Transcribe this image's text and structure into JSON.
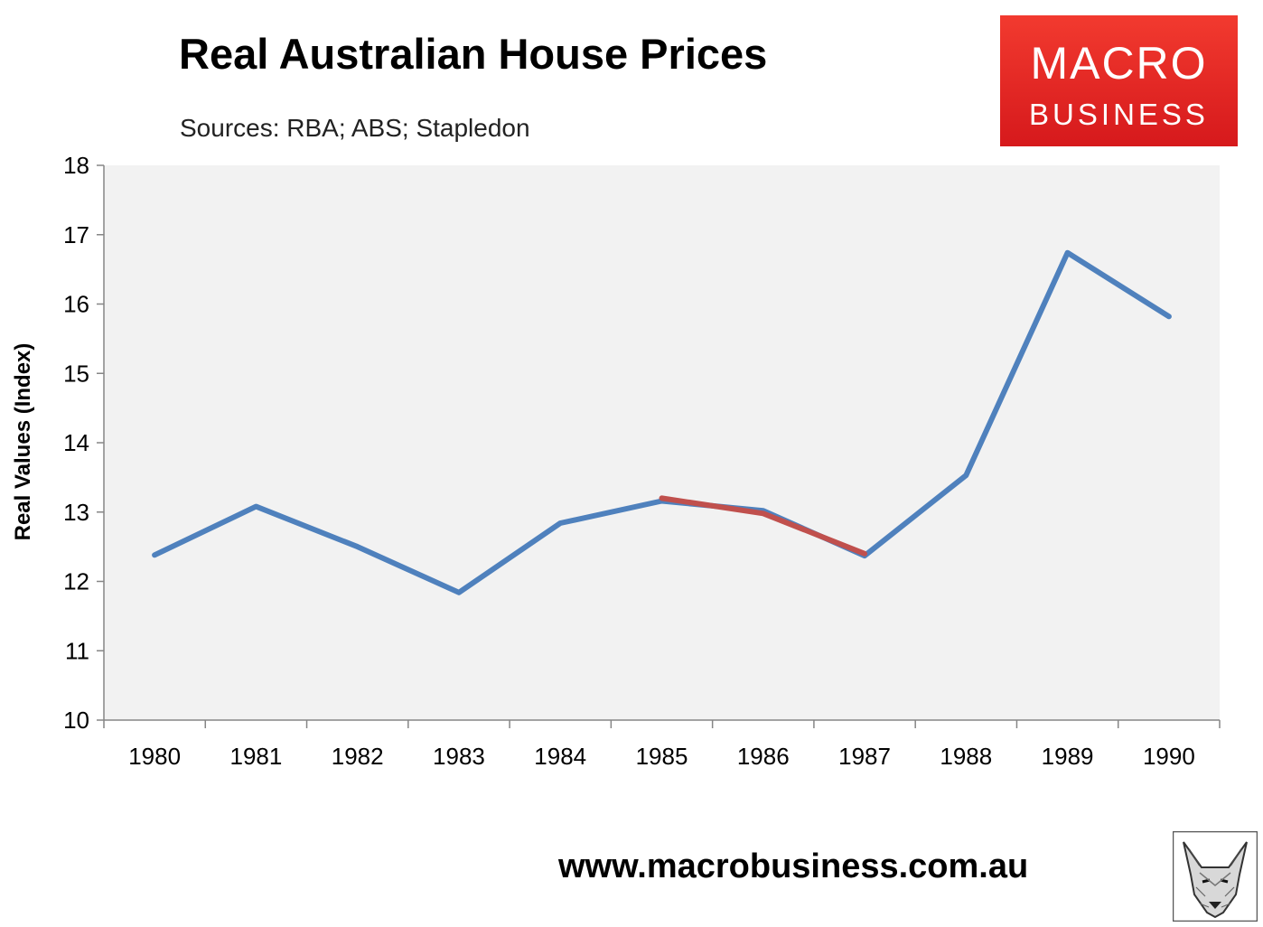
{
  "header": {
    "title": "Real Australian House Prices",
    "subtitle": "Sources: RBA; ABS; Stapledon"
  },
  "logo": {
    "line1": "MACRO",
    "line2": "BUSINESS",
    "color": "#e3262a"
  },
  "footer": {
    "website": "www.macrobusiness.com.au",
    "mascot": "fox-logo"
  },
  "colors": {
    "plot_background": "#f2f2f2",
    "series_main": "#4f81bd",
    "series_highlight": "#c0504d"
  },
  "chart_data": {
    "type": "line",
    "title": "Real Australian House Prices",
    "ylabel": "Real Values (Index)",
    "xlabel": "",
    "ylim": [
      10,
      18
    ],
    "yticks": [
      10,
      11,
      12,
      13,
      14,
      15,
      16,
      17,
      18
    ],
    "categories": [
      "1980",
      "1981",
      "1982",
      "1983",
      "1984",
      "1985",
      "1986",
      "1987",
      "1988",
      "1989",
      "1990"
    ],
    "grid": false,
    "legend": "none",
    "series": [
      {
        "color": "#4f81bd",
        "x": [
          "1980",
          "1981",
          "1982",
          "1983",
          "1984",
          "1985",
          "1986",
          "1987",
          "1988",
          "1989",
          "1990"
        ],
        "values": [
          12.38,
          13.08,
          12.5,
          11.84,
          12.84,
          13.16,
          13.02,
          12.37,
          13.53,
          16.74,
          15.82
        ]
      },
      {
        "color": "#c0504d",
        "x": [
          "1985",
          "1986",
          "1987"
        ],
        "values": [
          13.2,
          12.98,
          12.4
        ]
      }
    ]
  }
}
